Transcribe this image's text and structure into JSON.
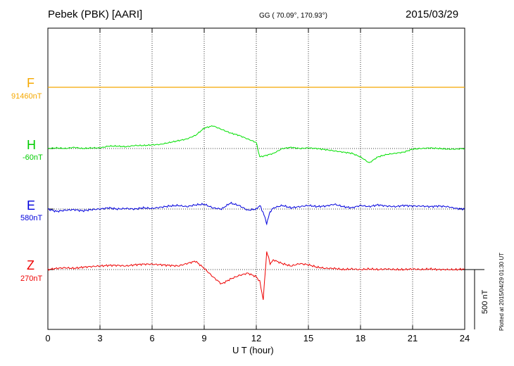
{
  "header": {
    "station": "Pebek (PBK)  [AARI]",
    "coords": "GG ( 70.09°, 170.93°)",
    "date": "2015/03/29"
  },
  "footer": {
    "xlabel": "U T (hour)",
    "plotted": "Plotted at 2015/04/29 01:30 UT",
    "scale_label": "500 nT"
  },
  "chart_data": {
    "type": "line",
    "xlim": [
      0,
      24
    ],
    "xticks": [
      "0",
      "3",
      "6",
      "9",
      "12",
      "15",
      "18",
      "21",
      "24"
    ],
    "scale_nT": 500,
    "grid": true,
    "series": [
      {
        "name": "F",
        "offset_label": "91460nT",
        "color": "#f5a800",
        "x": [
          0,
          24
        ],
        "y": [
          0,
          0
        ]
      },
      {
        "name": "H",
        "offset_label": "-60nT",
        "color": "#00e000",
        "x": [
          0,
          0.5,
          1,
          1.5,
          2,
          2.5,
          3,
          3.5,
          4,
          4.5,
          5,
          5.5,
          6,
          6.5,
          7,
          7.5,
          8,
          8.5,
          9,
          9.5,
          10,
          10.5,
          11,
          11.5,
          12,
          12.2,
          12.5,
          13,
          13.5,
          14,
          14.5,
          15,
          15.5,
          16,
          16.5,
          17,
          17.5,
          18,
          18.5,
          19,
          19.5,
          20,
          20.5,
          21,
          21.5,
          22,
          22.5,
          23,
          23.5,
          24
        ],
        "y": [
          0,
          5,
          0,
          10,
          0,
          5,
          5,
          20,
          20,
          15,
          25,
          25,
          30,
          35,
          50,
          65,
          80,
          110,
          170,
          190,
          160,
          130,
          110,
          80,
          50,
          -70,
          -60,
          -40,
          0,
          10,
          0,
          5,
          0,
          -10,
          -20,
          -30,
          -40,
          -70,
          -120,
          -70,
          -50,
          -40,
          -30,
          -5,
          0,
          5,
          0,
          -5,
          -5,
          0
        ]
      },
      {
        "name": "E",
        "offset_label": "580nT",
        "color": "#0000dd",
        "x": [
          0,
          0.5,
          1,
          1.5,
          2,
          2.5,
          3,
          3.5,
          4,
          4.5,
          5,
          5.5,
          6,
          6.5,
          7,
          7.5,
          8,
          8.5,
          9,
          9.5,
          10,
          10.5,
          11,
          11.5,
          12,
          12.2,
          12.4,
          12.6,
          12.8,
          13,
          13.5,
          14,
          14.5,
          15,
          15.5,
          16,
          16.5,
          17,
          17.5,
          18,
          18.5,
          19,
          19.5,
          20,
          20.5,
          21,
          21.5,
          22,
          22.5,
          23,
          23.5,
          24
        ],
        "y": [
          0,
          -20,
          -10,
          -5,
          -15,
          -5,
          0,
          10,
          0,
          5,
          0,
          10,
          5,
          15,
          25,
          30,
          20,
          35,
          40,
          10,
          0,
          50,
          30,
          -10,
          0,
          30,
          -30,
          -120,
          -20,
          10,
          30,
          10,
          20,
          30,
          20,
          25,
          40,
          20,
          10,
          30,
          20,
          35,
          25,
          20,
          30,
          25,
          25,
          20,
          25,
          20,
          5,
          0
        ]
      },
      {
        "name": "Z",
        "offset_label": "270nT",
        "color": "#ee0000",
        "x": [
          0,
          0.5,
          1,
          1.5,
          2,
          2.5,
          3,
          3.5,
          4,
          4.5,
          5,
          5.5,
          6,
          6.5,
          7,
          7.5,
          8,
          8.5,
          9,
          9.5,
          10,
          10.5,
          11,
          11.5,
          12,
          12.2,
          12.4,
          12.6,
          12.8,
          13,
          13.5,
          14,
          14.5,
          15,
          15.5,
          16,
          16.5,
          17,
          17.5,
          18,
          18.5,
          19,
          19.5,
          20,
          20.5,
          21,
          21.5,
          22,
          22.5,
          23,
          23.5,
          24
        ],
        "y": [
          0,
          10,
          15,
          10,
          20,
          25,
          30,
          35,
          35,
          30,
          40,
          45,
          45,
          40,
          35,
          30,
          50,
          70,
          10,
          -60,
          -120,
          -80,
          -50,
          -30,
          -60,
          -100,
          -250,
          150,
          50,
          80,
          50,
          30,
          50,
          40,
          20,
          10,
          10,
          0,
          5,
          0,
          5,
          0,
          5,
          0,
          0,
          5,
          0,
          5,
          0,
          0,
          0,
          5
        ]
      }
    ]
  }
}
